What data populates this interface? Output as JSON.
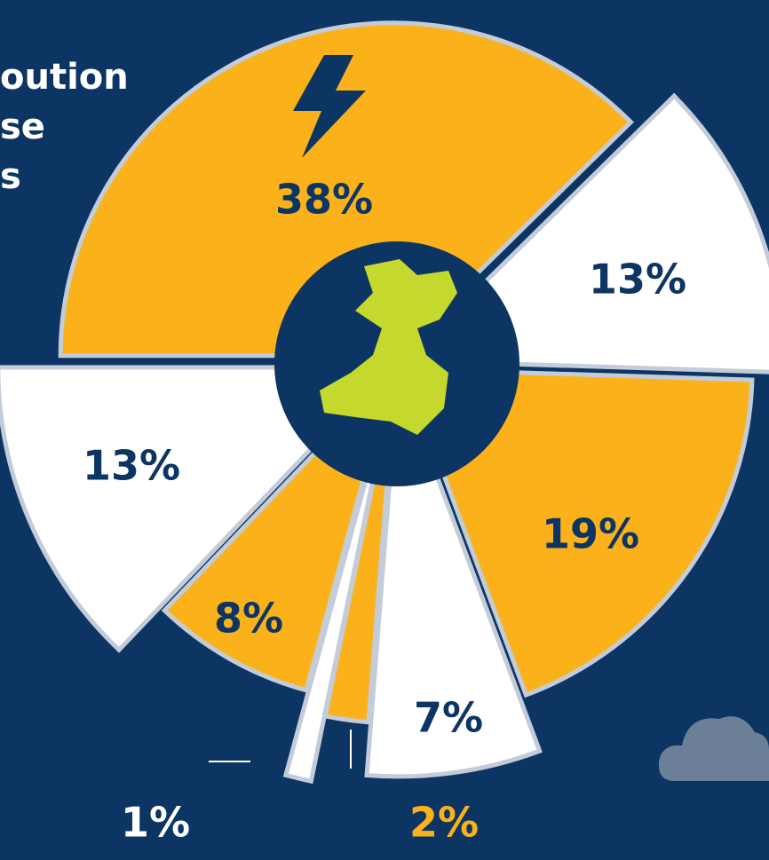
{
  "chart_data": {
    "type": "pie",
    "title_lines": [
      "oution",
      "se",
      "s"
    ],
    "values": [
      38,
      13,
      19,
      7,
      2,
      1,
      8,
      13
    ],
    "value_labels": [
      "38%",
      "13%",
      "19%",
      "7%",
      "2%",
      "1%",
      "8%",
      "13%"
    ],
    "colors": [
      "#fbb21a",
      "#ffffff",
      "#fbb21a",
      "#ffffff",
      "#fbb21a",
      "#ffffff",
      "#fbb21a",
      "#ffffff"
    ]
  }
}
